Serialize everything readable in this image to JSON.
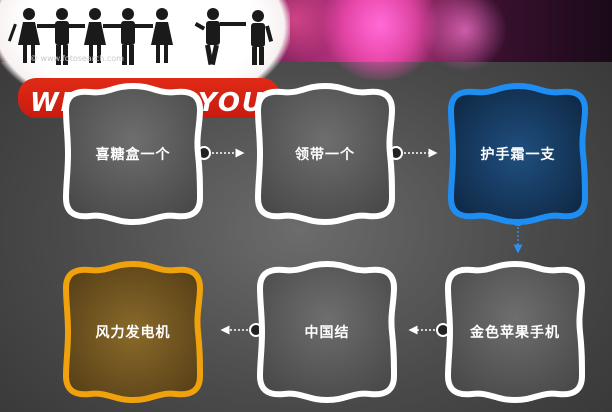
{
  "banner": {
    "slogan": "WE WANT YOU!",
    "watermark": "© www.fotosearch.com"
  },
  "colors": {
    "node_border": "#ffffff",
    "highlight_blue": "#1f8ef2",
    "highlight_orange": "#f0a20c",
    "arrow": "#ffffff",
    "arrow_down": "#2e8ff0"
  },
  "nodes": [
    {
      "id": "n1",
      "label": "喜糖盒一个",
      "style": "plain"
    },
    {
      "id": "n2",
      "label": "领带一个",
      "style": "plain"
    },
    {
      "id": "n3",
      "label": "护手霜一支",
      "style": "blue"
    },
    {
      "id": "n4",
      "label": "金色苹果手机",
      "style": "plain"
    },
    {
      "id": "n5",
      "label": "中国结",
      "style": "plain"
    },
    {
      "id": "n6",
      "label": "风力发电机",
      "style": "orange"
    }
  ],
  "edges": [
    {
      "from": "n1",
      "to": "n2"
    },
    {
      "from": "n2",
      "to": "n3"
    },
    {
      "from": "n3",
      "to": "n4"
    },
    {
      "from": "n4",
      "to": "n5"
    },
    {
      "from": "n5",
      "to": "n6"
    }
  ]
}
